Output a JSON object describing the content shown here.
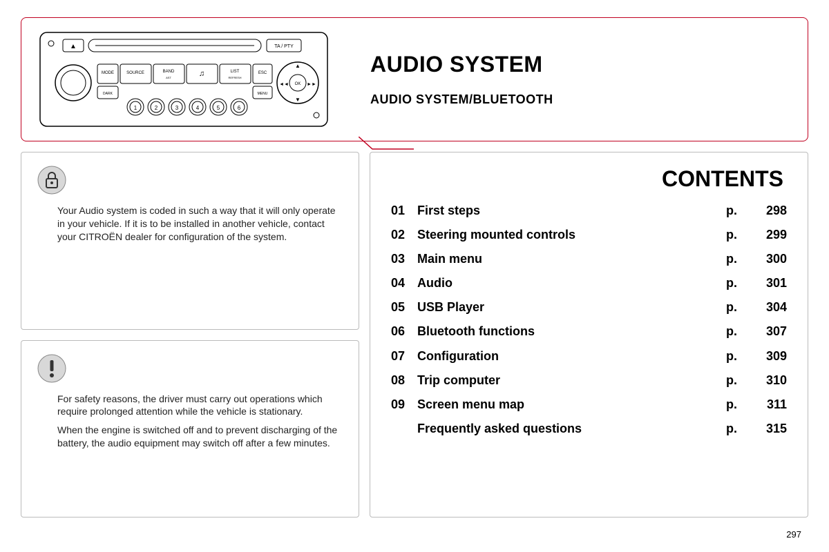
{
  "header": {
    "title": "AUDIO SYSTEM",
    "subtitle": "AUDIO SYSTEM/BLUETOOTH"
  },
  "lock_box": {
    "icon_name": "lock-icon",
    "text": "Your Audio system is coded in such a way that it will only operate in your vehicle. If it is to be installed in another vehicle, contact your CITROËN dealer for configuration of the system."
  },
  "warning_box": {
    "icon_name": "warning-icon",
    "para1": "For safety reasons, the driver must carry out operations which require prolonged attention while the vehicle is stationary.",
    "para2": "When the engine is switched off and to prevent discharging of the battery, the audio equipment may switch off after a few minutes."
  },
  "contents": {
    "title": "CONTENTS",
    "rows": [
      {
        "num": "01",
        "label": "First steps",
        "p": "p.",
        "page": "298"
      },
      {
        "num": "02",
        "label": "Steering mounted controls",
        "p": "p.",
        "page": "299"
      },
      {
        "num": "03",
        "label": "Main menu",
        "p": "p.",
        "page": "300"
      },
      {
        "num": "04",
        "label": "Audio",
        "p": "p.",
        "page": "301"
      },
      {
        "num": "05",
        "label": "USB Player",
        "p": "p.",
        "page": "304"
      },
      {
        "num": "06",
        "label": "Bluetooth functions",
        "p": "p.",
        "page": "307"
      },
      {
        "num": "07",
        "label": "Configuration",
        "p": "p.",
        "page": "309"
      },
      {
        "num": "08",
        "label": "Trip computer",
        "p": "p.",
        "page": "310"
      },
      {
        "num": "09",
        "label": "Screen menu map",
        "p": "p.",
        "page": "311"
      },
      {
        "num": "",
        "label": "Frequently asked questions",
        "p": "p.",
        "page": "315"
      }
    ]
  },
  "radio": {
    "buttons": {
      "mode": "MODE",
      "source": "SOURCE",
      "band": "BAND",
      "band_sub": "AST",
      "music": "♫",
      "list": "LIST",
      "list_sub": "REFRESH",
      "esc": "ESC",
      "dark": "DARK",
      "menu": "MENU",
      "ok": "OK",
      "tapty": "TA / PTY",
      "rew": "◄◄",
      "fwd": "►►",
      "up": "▲",
      "down": "▼",
      "p1": "1",
      "p2": "2",
      "p3": "3",
      "p4": "4",
      "p5": "5",
      "p6": "6",
      "eject": "▲"
    }
  },
  "page_number": "297",
  "style": {
    "accent": "#c00020",
    "border_gray": "#bbbbbb"
  }
}
